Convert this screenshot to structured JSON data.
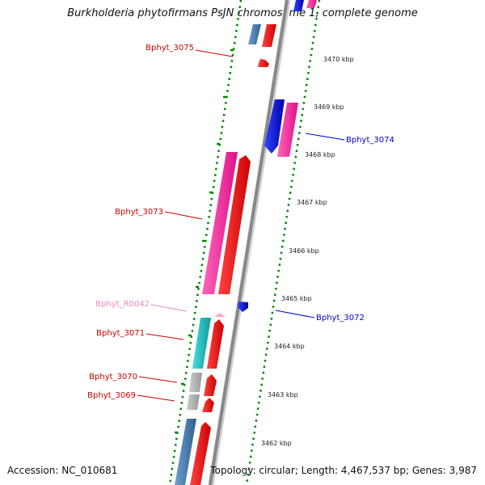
{
  "title": "Burkholderia phytofirmans PsJN chromosome 1, complete genome",
  "footer": {
    "accession": "Accession: NC_010681",
    "topology": "Topology: circular; Length: 4,467,537 bp; Genes: 3,987"
  },
  "ticks": [
    "3470 kbp",
    "3469 kbp",
    "3468 kbp",
    "3467 kbp",
    "3466 kbp",
    "3465 kbp",
    "3464 kbp",
    "3463 kbp",
    "3462 kbp"
  ],
  "genes": [
    {
      "id": "Bphyt_3075",
      "color": "#cc0000"
    },
    {
      "id": "Bphyt_3074",
      "color": "#0000cc"
    },
    {
      "id": "Bphyt_3073",
      "color": "#cc0000"
    },
    {
      "id": "Bphyt_R0042",
      "color": "#ee88bb"
    },
    {
      "id": "Bphyt_3072",
      "color": "#0000cc"
    },
    {
      "id": "Bphyt_3071",
      "color": "#cc0000"
    },
    {
      "id": "Bphyt_3070",
      "color": "#cc0000"
    },
    {
      "id": "Bphyt_3069",
      "color": "#cc0000"
    }
  ],
  "colors": {
    "forward_cds": "#ff0000",
    "reverse_cds": "#0000ee",
    "rrna_like": "#ff3399",
    "trna": "#ffaacc",
    "cyan_feature": "#19cccc",
    "grey_feature": "#aaaaaa",
    "steelblue_feature": "#4682b4",
    "ticks": "#008800",
    "backbone": "#888888"
  }
}
